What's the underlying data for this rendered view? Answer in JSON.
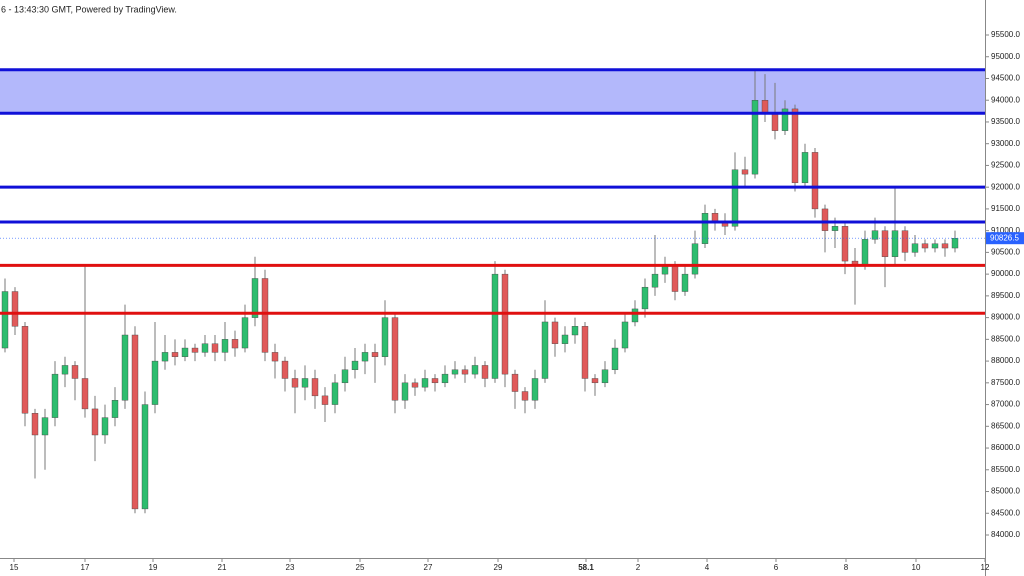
{
  "chart_data": {
    "type": "candlestick",
    "subtitle": "6 - 13:43:30 GMT, Powered by TradingView.",
    "up_color": "#2dbd6e",
    "down_color": "#e05a5a",
    "open": [
      88300,
      89600,
      88800,
      86800,
      86300,
      86700,
      87700,
      87900,
      87600,
      86900,
      86300,
      86700,
      87100,
      88600,
      84600,
      87000,
      88000,
      88200,
      88100,
      88300,
      88200,
      88400,
      88200,
      88500,
      88300,
      89000,
      89900,
      88200,
      88000,
      87600,
      87400,
      87600,
      87200,
      87000,
      87500,
      87800,
      88000,
      88200,
      88100,
      89000,
      87100,
      87500,
      87400,
      87600,
      87500,
      87700,
      87800,
      87700,
      87900,
      87600,
      90000,
      87700,
      87300,
      87100,
      87600,
      88900,
      88400,
      88600,
      88800,
      87600,
      87500,
      87800,
      88300,
      88900,
      89200,
      89700,
      90000,
      90200,
      89600,
      90000,
      90700,
      91400,
      91200,
      91100,
      92400,
      92300,
      94000,
      93700,
      93300,
      93800,
      92100,
      92800,
      91500,
      91000,
      91100,
      90300,
      90200,
      90800,
      91000,
      90400,
      91000,
      90500,
      90700,
      90600,
      90700,
      90600
    ],
    "high": [
      89900,
      89700,
      88900,
      86900,
      86900,
      88000,
      88100,
      88000,
      90200,
      87200,
      87000,
      87400,
      89300,
      88800,
      87300,
      88900,
      88600,
      88500,
      88500,
      88400,
      88600,
      88600,
      88900,
      88700,
      89300,
      90400,
      90100,
      88400,
      88100,
      87800,
      87900,
      87800,
      87400,
      87700,
      88100,
      88300,
      88400,
      88400,
      89400,
      89100,
      87700,
      87600,
      87800,
      87700,
      87900,
      88000,
      87900,
      88100,
      88000,
      90300,
      90100,
      87800,
      87400,
      87800,
      89400,
      89000,
      88800,
      89000,
      88900,
      87700,
      88000,
      88500,
      89100,
      89400,
      89900,
      90900,
      90400,
      90300,
      90200,
      91000,
      91600,
      91500,
      91400,
      92800,
      92700,
      94700,
      94600,
      94400,
      94000,
      93900,
      93000,
      92900,
      91600,
      91300,
      91200,
      90600,
      91000,
      91300,
      91100,
      92000,
      91100,
      90900,
      90800,
      90800,
      90800,
      91000
    ],
    "low": [
      88200,
      88600,
      86500,
      85300,
      85500,
      86500,
      87400,
      87100,
      86700,
      85700,
      86100,
      86500,
      86900,
      84500,
      84500,
      86800,
      87800,
      87900,
      88000,
      88000,
      88100,
      88000,
      88000,
      88100,
      88200,
      88800,
      88000,
      87600,
      87300,
      86800,
      87100,
      86900,
      86600,
      86800,
      87300,
      87600,
      87700,
      87500,
      87900,
      86800,
      86900,
      87200,
      87300,
      87300,
      87400,
      87600,
      87500,
      87600,
      87400,
      87500,
      87400,
      86900,
      86800,
      86900,
      87500,
      88100,
      88200,
      88400,
      87300,
      87200,
      87400,
      87700,
      88200,
      88800,
      89000,
      89500,
      89800,
      89400,
      89500,
      89900,
      90600,
      91000,
      90900,
      91000,
      92000,
      92200,
      93500,
      93100,
      93200,
      91900,
      92000,
      91300,
      90500,
      90600,
      90000,
      89300,
      90100,
      90700,
      89700,
      90200,
      90300,
      90400,
      90500,
      90500,
      90400,
      90500
    ],
    "close": [
      89600,
      88800,
      86800,
      86300,
      86700,
      87700,
      87900,
      87600,
      86900,
      86300,
      86700,
      87100,
      88600,
      84600,
      87000,
      88000,
      88200,
      88100,
      88300,
      88200,
      88400,
      88200,
      88500,
      88300,
      89000,
      89900,
      88200,
      88000,
      87600,
      87400,
      87600,
      87200,
      87000,
      87500,
      87800,
      88000,
      88200,
      88100,
      89000,
      87100,
      87500,
      87400,
      87600,
      87500,
      87700,
      87800,
      87700,
      87900,
      87600,
      90000,
      87700,
      87300,
      87100,
      87600,
      88900,
      88400,
      88600,
      88800,
      87600,
      87500,
      87800,
      88300,
      88900,
      89200,
      89700,
      90000,
      90200,
      89600,
      90000,
      90700,
      91400,
      91200,
      91100,
      92400,
      92300,
      94000,
      93700,
      93300,
      93800,
      92100,
      92800,
      91500,
      91000,
      91100,
      90300,
      90200,
      90800,
      91000,
      90400,
      91000,
      90500,
      90700,
      90600,
      90700,
      90600,
      90826.5
    ],
    "xlim": [
      -0.5,
      98
    ],
    "xticks": [
      {
        "value": 0.9,
        "label": "15"
      },
      {
        "value": 8,
        "label": "17"
      },
      {
        "value": 14.8,
        "label": "19"
      },
      {
        "value": 21.7,
        "label": "21"
      },
      {
        "value": 28.5,
        "label": "23"
      },
      {
        "value": 35.5,
        "label": "25"
      },
      {
        "value": 42.3,
        "label": "27"
      },
      {
        "value": 49.3,
        "label": "29"
      },
      58.1,
      {
        "value": 63.3,
        "label": "2"
      },
      {
        "value": 70.2,
        "label": "4"
      },
      {
        "value": 77.1,
        "label": "6"
      },
      {
        "value": 84.1,
        "label": "8"
      },
      {
        "value": 91.1,
        "label": "10"
      },
      {
        "value": 98,
        "label": "12"
      }
    ],
    "ylim": [
      83540,
      96305
    ],
    "yticks": [
      {
        "value": 84000,
        "label": "84000.0"
      },
      {
        "value": 84500,
        "label": "84500.0"
      },
      {
        "value": 85000,
        "label": "85000.0"
      },
      {
        "value": 85500,
        "label": "85500.0"
      },
      {
        "value": 86000,
        "label": "86000.0"
      },
      {
        "value": 86500,
        "label": "86500.0"
      },
      {
        "value": 87000,
        "label": "87000.0"
      },
      {
        "value": 87500,
        "label": "87500.0"
      },
      {
        "value": 88000,
        "label": "88000.0"
      },
      {
        "value": 88500,
        "label": "88500.0"
      },
      {
        "value": 89000,
        "label": "89000.0"
      },
      {
        "value": 89500,
        "label": "89500.0"
      },
      {
        "value": 90000,
        "label": "90000.0"
      },
      {
        "value": 90500,
        "label": "90500.0"
      },
      {
        "value": 91000,
        "label": "91000.0"
      },
      {
        "value": 91500,
        "label": "91500.0"
      },
      {
        "value": 92000,
        "label": "92000.0"
      },
      {
        "value": 92500,
        "label": "92500.0"
      },
      {
        "value": 93000,
        "label": "93000.0"
      },
      {
        "value": 93500,
        "label": "93500.0"
      },
      {
        "value": 94000,
        "label": "94000.0"
      },
      {
        "value": 94500,
        "label": "94500.0"
      },
      {
        "value": 95000,
        "label": "95000.0"
      },
      {
        "value": 95500,
        "label": "95500.0"
      }
    ],
    "zone": {
      "from": 93700,
      "to": 94700,
      "color": "#b3b8fb"
    },
    "levels": [
      {
        "value": 94700,
        "color": "#1010d8"
      },
      {
        "value": 93700,
        "color": "#1010d8"
      },
      {
        "value": 92000,
        "color": "#1010d8"
      },
      {
        "value": 91200,
        "color": "#1010d8"
      },
      {
        "value": 90200,
        "color": "#e01010"
      },
      {
        "value": 89100,
        "color": "#e01010"
      }
    ],
    "last_color": "#2962ff"
  }
}
